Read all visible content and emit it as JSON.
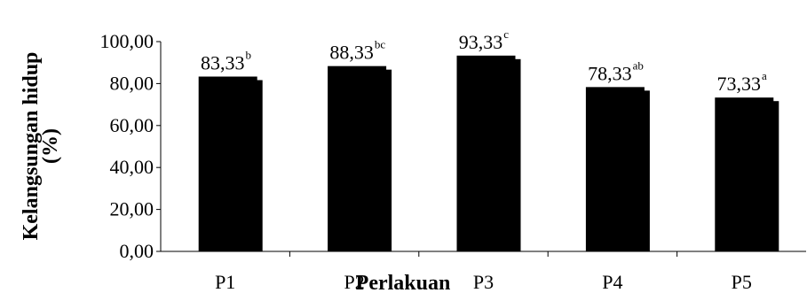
{
  "chart_data": {
    "type": "bar",
    "categories": [
      "P1",
      "P2",
      "P3",
      "P4",
      "P5"
    ],
    "values": [
      83.33,
      88.33,
      93.33,
      78.33,
      73.33
    ],
    "data_labels": [
      "83,33",
      "88,33",
      "93,33",
      "78,33",
      "73,33"
    ],
    "significance": [
      "b",
      "bc",
      "c",
      "ab",
      "a"
    ],
    "xlabel": "Perlakuan",
    "ylabel": "Kelangsungan hidup (%)",
    "ylabel_lines": [
      "Kelangsungan hidup",
      "(%)"
    ],
    "ylim": [
      0,
      100
    ],
    "yticks": [
      0,
      20,
      40,
      60,
      80,
      100
    ],
    "ytick_labels": [
      "0,00",
      "20,00",
      "40,00",
      "60,00",
      "80,00",
      "100,00"
    ],
    "grid": false,
    "legend": "none",
    "bar_color": "#000000"
  }
}
